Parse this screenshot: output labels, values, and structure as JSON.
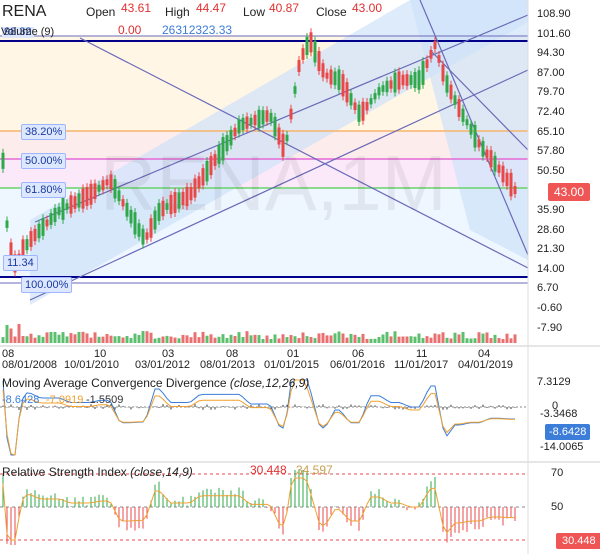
{
  "symbol": "RENA",
  "ohlc": {
    "open_label": "Open",
    "open": "43.61",
    "high_label": "High",
    "high": "44.47",
    "low_label": "Low",
    "low": "40.87",
    "close_label": "Close",
    "close": "43.00"
  },
  "volume": {
    "label": "Volume (9)",
    "prefix": "98.32",
    "value1": "0.00",
    "value2": "26312323.33"
  },
  "watermark": "RENA,1M",
  "price_axis": [
    "108.90",
    "101.60",
    "94.30",
    "87.00",
    "79.70",
    "72.40",
    "65.10",
    "57.80",
    "50.50",
    "43.00",
    "35.90",
    "28.60",
    "21.30",
    "14.00",
    "6.70",
    "-0.60",
    "-7.90"
  ],
  "current_price": "43.00",
  "fib_labels": [
    {
      "text": "38.20%",
      "row": 0
    },
    {
      "text": "50.00%",
      "row": 1
    },
    {
      "text": "61.80%",
      "row": 2
    },
    {
      "text": "11.34",
      "row": 3
    },
    {
      "text": "100.00%",
      "row": 4
    }
  ],
  "x_axis": {
    "top_row": [
      "08",
      "10",
      "03",
      "08",
      "01",
      "06",
      "11",
      "04"
    ],
    "bottom_row": [
      "08/01/2008",
      "10/01/2010",
      "03/01/2012",
      "08/01/2013",
      "01/01/2015",
      "06/01/2016",
      "11/01/2017",
      "04/01/2019"
    ]
  },
  "macd": {
    "title": "Moving Average Convergence Divergence",
    "params": "(close,12,26,9)",
    "v1": "-8.6428",
    "v2": "-7.0919",
    "v3": "-1.5509",
    "axis": [
      "7.3129",
      "0",
      "-3.3468",
      "-14.0065"
    ],
    "current": "-8.6428"
  },
  "rsi": {
    "title": "Relative Strength Index",
    "params": "(close,14,9)",
    "v1": "30.448",
    "v2": "34.597",
    "axis": [
      "70",
      "50"
    ],
    "current": "30.448"
  },
  "colors": {
    "up": "#2ea84a",
    "down": "#e84848",
    "fib_red": "#f7b36b",
    "fib_pink": "#e46ad6",
    "fib_green": "#69d36a",
    "navy": "#00008b",
    "channel": "#6a6ab8",
    "macd": "#3b7dd8",
    "signal": "#f0a030"
  }
}
